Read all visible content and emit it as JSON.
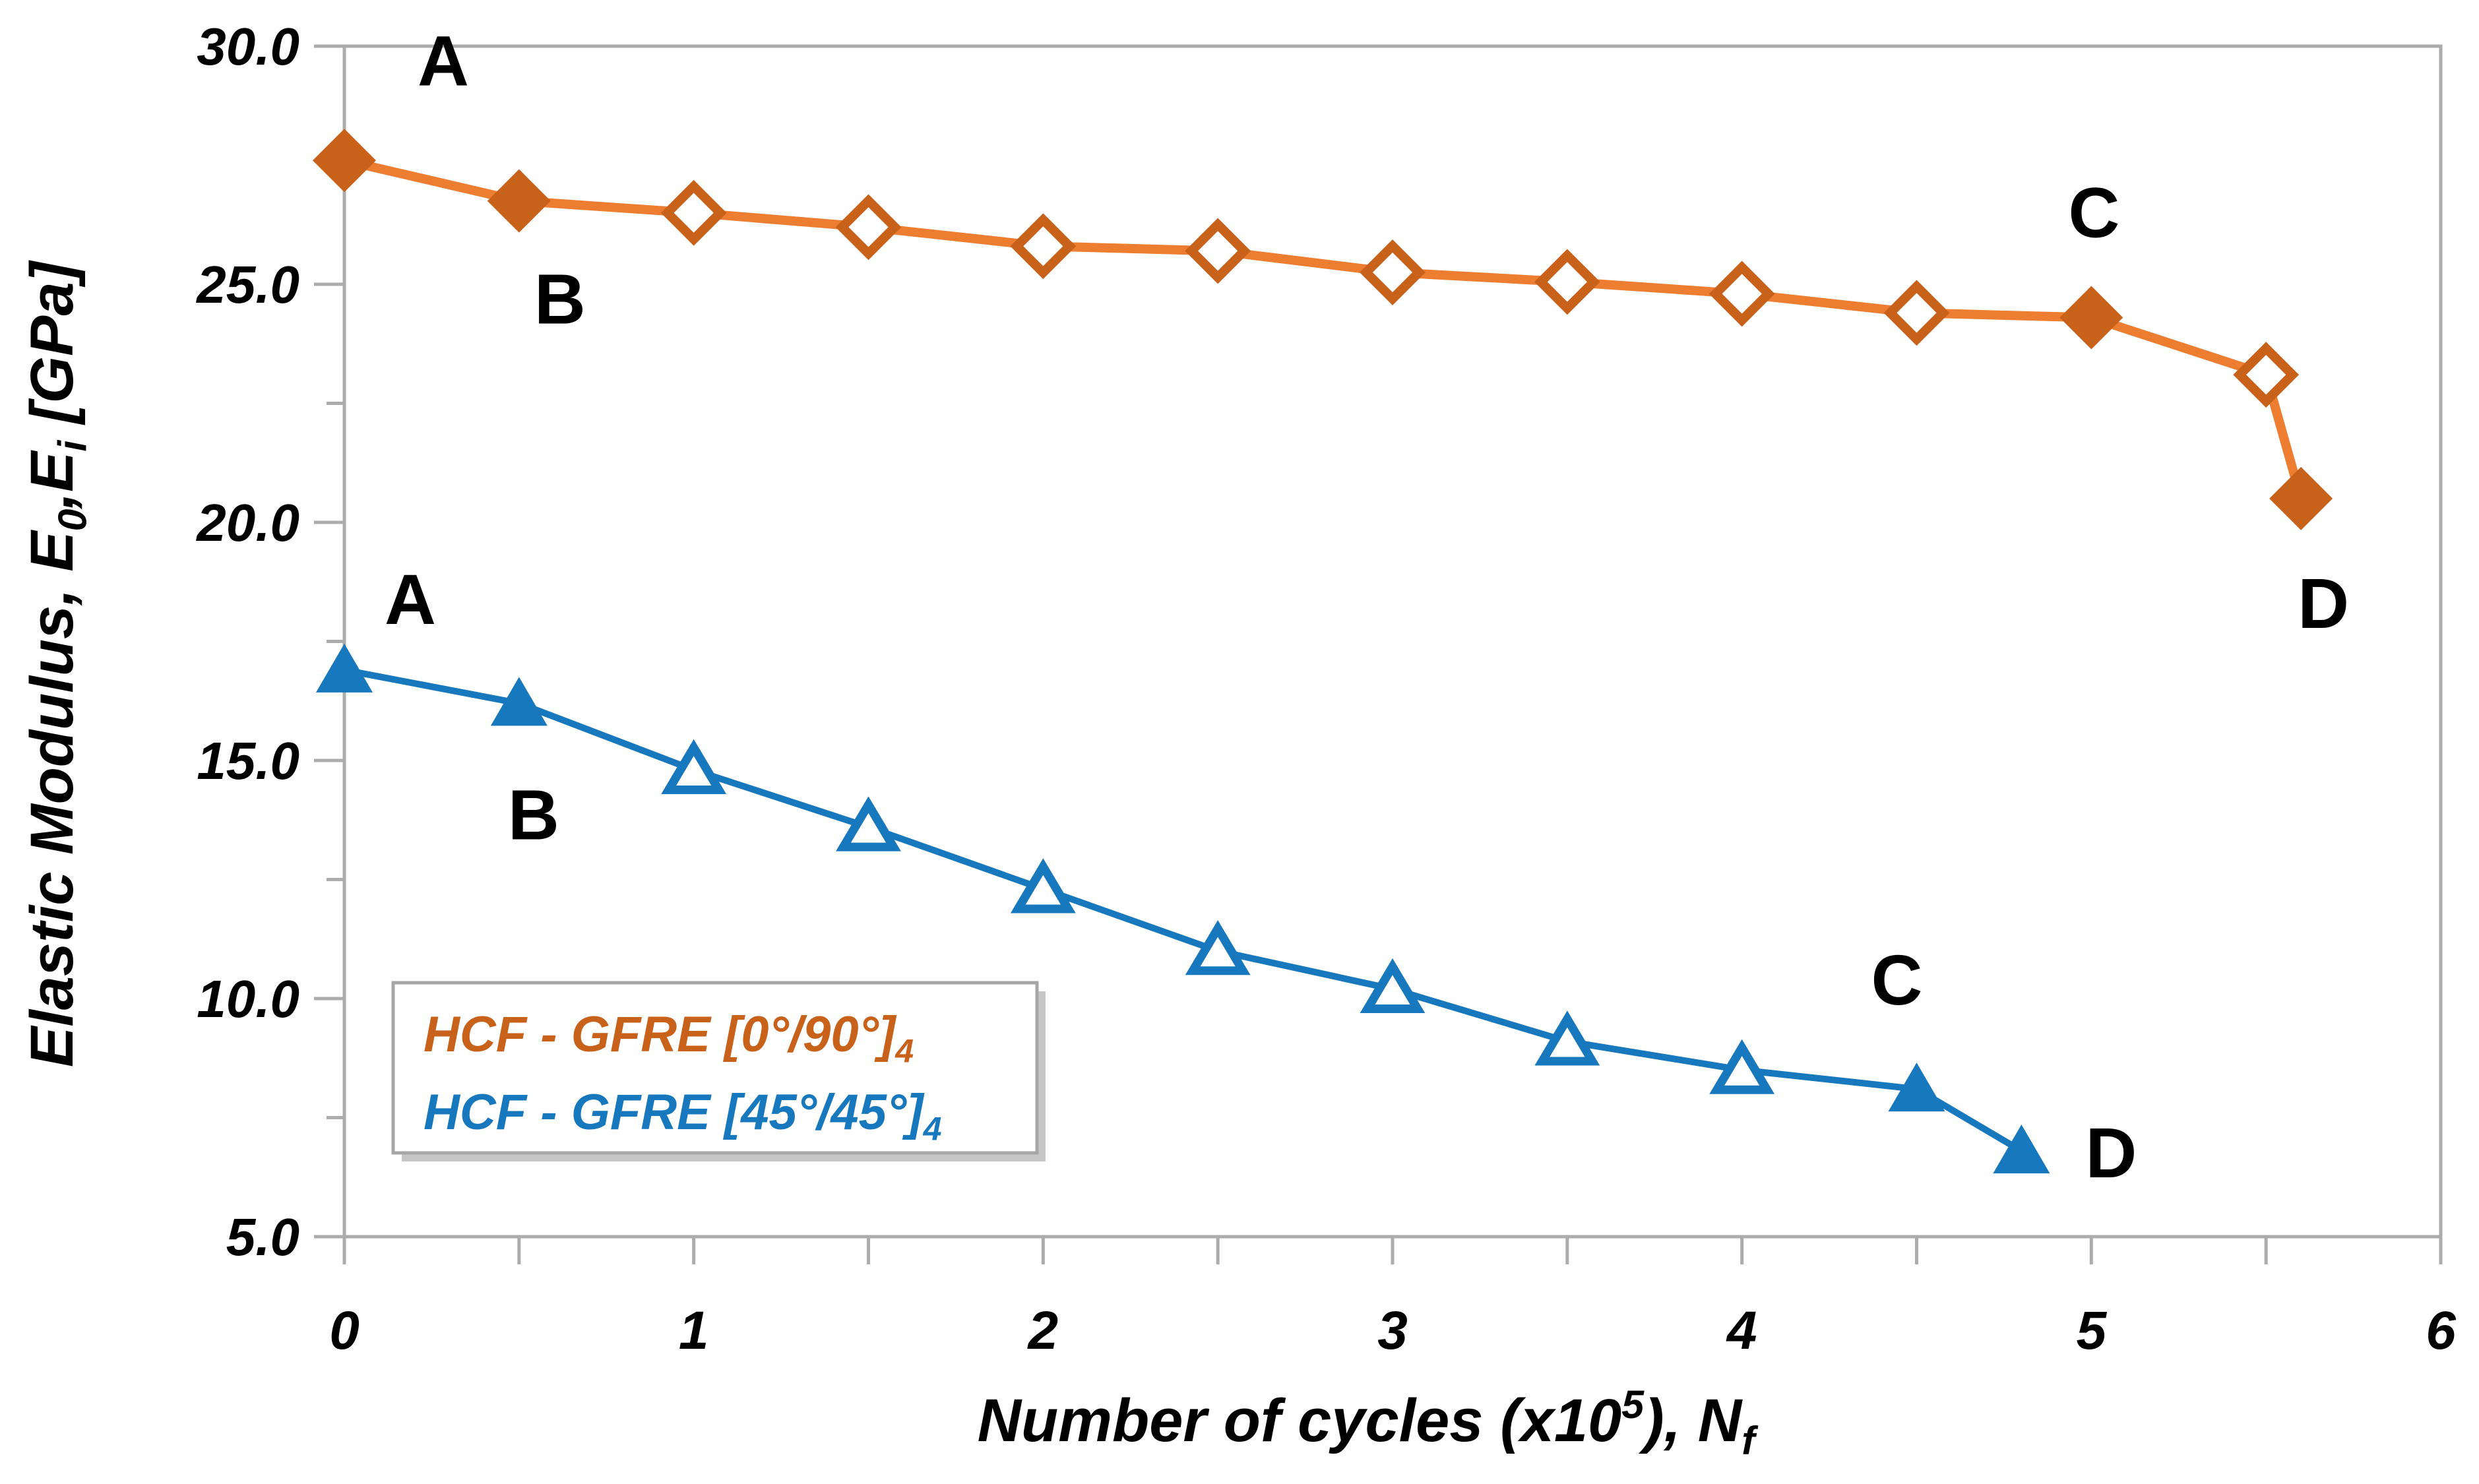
{
  "chart_data": {
    "type": "line",
    "title": "",
    "xlabel_parts": [
      {
        "t": "Number of cycles (x10"
      },
      {
        "t": "5",
        "sup": true
      },
      {
        "t": "), N"
      },
      {
        "t": "f",
        "sub": true
      }
    ],
    "ylabel_parts": [
      {
        "t": "Elastic Modulus, E"
      },
      {
        "t": "0",
        "sub": true
      },
      {
        "t": ",E"
      },
      {
        "t": "i",
        "sub": true
      },
      {
        "t": " [GPa]"
      }
    ],
    "xlabel": "Number of cycles (x10^5), Nf",
    "ylabel": "Elastic Modulus, E0,Ei [GPa]",
    "xlim": [
      0,
      6
    ],
    "ylim": [
      5,
      30
    ],
    "x_major_ticks": [
      0,
      1,
      2,
      3,
      4,
      5,
      6
    ],
    "x_minor_step": 0.5,
    "y_major_ticks": [
      30,
      25,
      20,
      15,
      10,
      5
    ],
    "y_minor_step": 2.5,
    "y_tick_format_decimals": 1,
    "grid": false,
    "axis_color": "#ACACAC",
    "text_color": "#000000",
    "legend_position": "inside-lower-left",
    "series": [
      {
        "name": "HCF - GFRE [0°/90°]4",
        "marker": "diamond",
        "line_color": "#ED7D31",
        "marker_color": "#C8611A",
        "x": [
          0,
          0.5,
          1,
          1.5,
          2,
          2.5,
          3,
          3.5,
          4,
          4.5,
          5,
          5.5,
          5.6
        ],
        "y": [
          27.6,
          26.75,
          26.5,
          26.2,
          25.8,
          25.7,
          25.25,
          25.05,
          24.8,
          24.4,
          24.3,
          23.1,
          20.5
        ],
        "filled": [
          true,
          true,
          false,
          false,
          false,
          false,
          false,
          false,
          false,
          false,
          true,
          false,
          true
        ],
        "point_labels": [
          "A",
          "B",
          "",
          "",
          "",
          "",
          "",
          "",
          "",
          "",
          "C",
          "",
          "D"
        ]
      },
      {
        "name": "HCF - GFRE [45°/45°]4",
        "marker": "triangle",
        "line_color": "#1878BE",
        "marker_color": "#1878BE",
        "x": [
          0,
          0.5,
          1,
          1.5,
          2,
          2.5,
          3,
          3.5,
          4,
          4.5,
          4.8
        ],
        "y": [
          16.9,
          16.2,
          14.8,
          13.6,
          12.3,
          11.0,
          10.2,
          9.1,
          8.5,
          8.1,
          6.8
        ],
        "filled": [
          true,
          true,
          false,
          false,
          false,
          false,
          false,
          false,
          false,
          true,
          true
        ],
        "point_labels": [
          "A",
          "B",
          "",
          "",
          "",
          "",
          "",
          "",
          "",
          "C",
          "D"
        ]
      }
    ],
    "legend": {
      "entries": [
        {
          "color": "#C8611A",
          "parts": [
            {
              "t": "HCF - GFRE [0°/90°]"
            },
            {
              "t": "4",
              "sub": true
            }
          ],
          "text": "HCF - GFRE [0°/90°]4"
        },
        {
          "color": "#1878BE",
          "parts": [
            {
              "t": "HCF - GFRE [45°/45°]"
            },
            {
              "t": "4",
              "sub": true
            }
          ],
          "text": "HCF - GFRE [45°/45°]4"
        }
      ]
    }
  }
}
